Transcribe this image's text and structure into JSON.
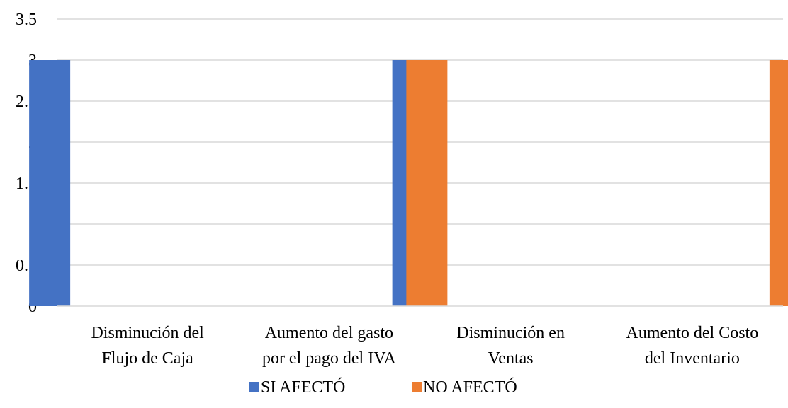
{
  "chart_data": {
    "type": "bar",
    "categories": [
      [
        "Disminución del",
        "Flujo de Caja"
      ],
      [
        "Aumento del gasto",
        "por el pago del IVA"
      ],
      [
        "Disminución en",
        "Ventas"
      ],
      [
        "Aumento del Costo",
        "del Inventario"
      ]
    ],
    "series": [
      {
        "name": "SI AFECTÓ",
        "color": "#4472C4",
        "values": [
          3,
          0,
          3,
          0
        ]
      },
      {
        "name": "NO AFECTÓ",
        "color": "#ED7D31",
        "values": [
          0,
          3,
          0,
          3
        ]
      }
    ],
    "ylim": [
      0,
      3.5
    ],
    "yticks": [
      "0",
      "0.5",
      "1",
      "1.5",
      "2",
      "2.5",
      "3",
      "3.5"
    ],
    "grid": true,
    "legend_position": "bottom",
    "title": "",
    "xlabel": "",
    "ylabel": ""
  }
}
